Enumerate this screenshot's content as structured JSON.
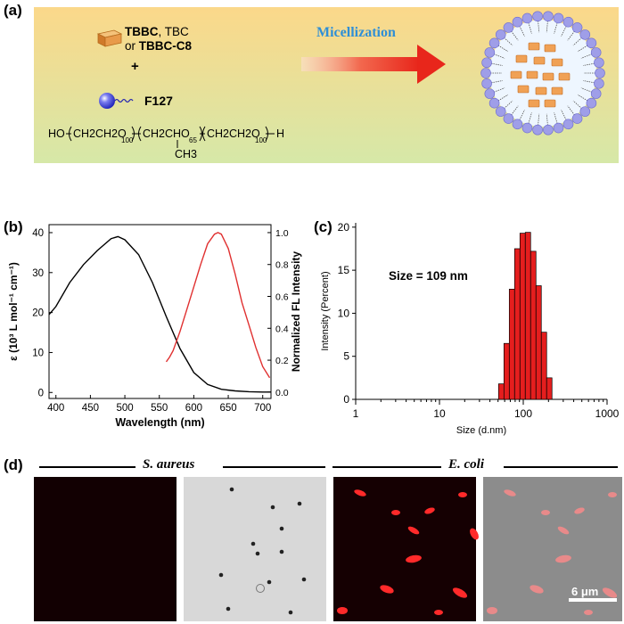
{
  "panel_a": {
    "label": "(a)",
    "dye_line1_a": "TBBC",
    "dye_line1_b": ", TBC",
    "dye_line2_a": "or ",
    "dye_line2_b": "TBBC-C8",
    "plus": "+",
    "polymer": "F127",
    "arrow_label": "Micellization",
    "formula": {
      "ho": "HO",
      "block1": "CH2CH2O",
      "n1": "100",
      "block2": "CH2CHO",
      "n2": "65",
      "block3": "CH2CH2O",
      "n3": "100",
      "h": "H",
      "methyl": "CH3"
    },
    "colors": {
      "gradient_top": "#fbd88a",
      "gradient_bottom": "#d6e8a8",
      "arrow": "#e8261b",
      "arrow_label": "#2f8fd6",
      "bead": "#9f9ee8",
      "core": "#f0a155"
    }
  },
  "chart_data": [
    {
      "panel": "(b)",
      "type": "line",
      "xlabel": "Wavelength (nm)",
      "ylabel": "ε (10³ L mol⁻¹ cm⁻¹)",
      "ylabel_right": "Normalized FL Intensity",
      "xlim": [
        390,
        712
      ],
      "ylim": [
        -1.5,
        42
      ],
      "ylim_right": [
        -0.04,
        1.05
      ],
      "x_ticks": [
        400,
        450,
        500,
        550,
        600,
        650,
        700
      ],
      "y_ticks": [
        0,
        10,
        20,
        30,
        40
      ],
      "y_ticks_right": [
        0.0,
        0.2,
        0.4,
        0.6,
        0.8,
        1.0
      ],
      "series": [
        {
          "color": "#000000",
          "axis": "left",
          "x": [
            390,
            400,
            420,
            440,
            460,
            480,
            490,
            500,
            520,
            540,
            560,
            580,
            600,
            620,
            640,
            660,
            680,
            700,
            712
          ],
          "y": [
            19.5,
            21.5,
            27.5,
            32,
            35.5,
            38.5,
            39,
            38.2,
            34.5,
            27.5,
            19,
            11,
            5,
            2,
            0.8,
            0.4,
            0.2,
            0.1,
            0.1
          ]
        },
        {
          "color": "#e03030",
          "axis": "right",
          "x": [
            560,
            565,
            570,
            580,
            590,
            600,
            610,
            620,
            630,
            635,
            640,
            650,
            660,
            670,
            680,
            690,
            700,
            710
          ],
          "y": [
            0.19,
            0.22,
            0.26,
            0.38,
            0.52,
            0.66,
            0.8,
            0.93,
            0.99,
            1.0,
            0.99,
            0.9,
            0.74,
            0.56,
            0.42,
            0.28,
            0.16,
            0.09
          ]
        }
      ]
    },
    {
      "panel": "(c)",
      "type": "bar",
      "xlabel": "Size (d.nm)",
      "ylabel": "Intensity (Percent)",
      "annotation": "Size = 109 nm",
      "xscale": "log",
      "xlim": [
        1,
        1000
      ],
      "ylim": [
        0,
        20.5
      ],
      "x_ticks": [
        "1",
        "10",
        "100",
        "1000"
      ],
      "y_ticks": [
        0,
        5,
        10,
        15,
        20
      ],
      "bar_color": "#e51e1e",
      "bins_left": [
        50.7,
        58.8,
        68.1,
        78.8,
        91.3,
        105.7,
        122.4,
        141.8,
        164.2,
        190.1
      ],
      "bins_right": [
        58.8,
        68.1,
        78.8,
        91.3,
        105.7,
        122.4,
        141.8,
        164.2,
        190.1,
        220.2
      ],
      "values": [
        1.8,
        6.5,
        12.8,
        17.5,
        19.3,
        19.4,
        17.2,
        13.2,
        7.8,
        2.5
      ]
    }
  ],
  "panel_d": {
    "label": "(d)",
    "group1": "S. aureus",
    "group2": "E. coli",
    "scale_bar": "6 μm"
  }
}
